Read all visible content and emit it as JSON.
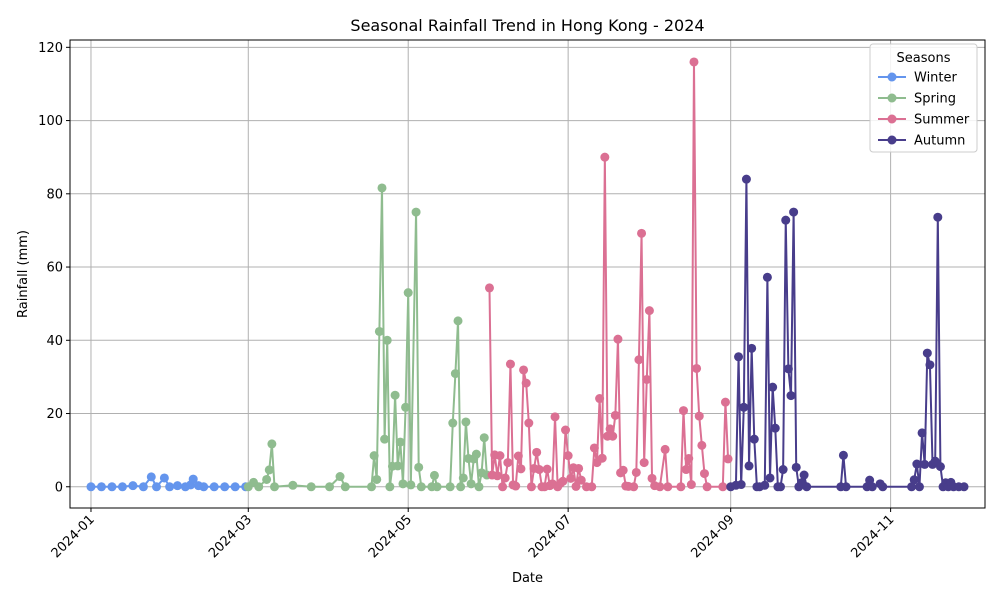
{
  "chart_data": {
    "type": "line",
    "title": "Seasonal Rainfall Trend in Hong Kong - 2024",
    "xlabel": "Date",
    "ylabel": "Rainfall (mm)",
    "xlim": [
      "2023-12-24",
      "2024-12-07"
    ],
    "ylim": [
      -5.8,
      122
    ],
    "x_ticks": [
      "2024-01",
      "2024-03",
      "2024-05",
      "2024-07",
      "2024-09",
      "2024-11"
    ],
    "y_ticks": [
      0,
      20,
      40,
      60,
      80,
      100,
      120
    ],
    "grid": true,
    "legend": {
      "title": "Seasons",
      "position": "top-right"
    },
    "series": [
      {
        "name": "Winter",
        "color": "#6495ED",
        "points": [
          [
            "2024-01-01",
            0
          ],
          [
            "2024-01-05",
            0
          ],
          [
            "2024-01-09",
            0
          ],
          [
            "2024-01-13",
            0
          ],
          [
            "2024-01-17",
            0.3
          ],
          [
            "2024-01-21",
            0
          ],
          [
            "2024-01-24",
            2.7
          ],
          [
            "2024-01-26",
            0
          ],
          [
            "2024-01-29",
            2.4
          ],
          [
            "2024-01-31",
            0
          ],
          [
            "2024-02-03",
            0.3
          ],
          [
            "2024-02-06",
            0
          ],
          [
            "2024-02-08",
            0.5
          ],
          [
            "2024-02-09",
            2.1
          ],
          [
            "2024-02-11",
            0.3
          ],
          [
            "2024-02-13",
            0
          ],
          [
            "2024-02-17",
            0
          ],
          [
            "2024-02-21",
            0
          ],
          [
            "2024-02-25",
            0
          ],
          [
            "2024-02-29",
            0
          ]
        ]
      },
      {
        "name": "Spring",
        "color": "#8FBC8F",
        "points": [
          [
            "2024-03-01",
            0
          ],
          [
            "2024-03-03",
            1.2
          ],
          [
            "2024-03-05",
            0
          ],
          [
            "2024-03-08",
            2
          ],
          [
            "2024-03-09",
            4.6
          ],
          [
            "2024-03-10",
            11.7
          ],
          [
            "2024-03-11",
            0
          ],
          [
            "2024-03-18",
            0.4
          ],
          [
            "2024-03-25",
            0
          ],
          [
            "2024-04-01",
            0
          ],
          [
            "2024-04-05",
            2.8
          ],
          [
            "2024-04-07",
            0
          ],
          [
            "2024-04-17",
            0
          ],
          [
            "2024-04-18",
            8.5
          ],
          [
            "2024-04-19",
            2
          ],
          [
            "2024-04-20",
            42.4
          ],
          [
            "2024-04-21",
            81.6
          ],
          [
            "2024-04-22",
            13
          ],
          [
            "2024-04-23",
            40
          ],
          [
            "2024-04-24",
            0
          ],
          [
            "2024-04-25",
            5.6
          ],
          [
            "2024-04-26",
            25
          ],
          [
            "2024-04-27",
            5.7
          ],
          [
            "2024-04-28",
            12.2
          ],
          [
            "2024-04-29",
            0.8
          ],
          [
            "2024-04-30",
            21.7
          ],
          [
            "2024-05-01",
            53
          ],
          [
            "2024-05-02",
            0.5
          ],
          [
            "2024-05-04",
            75
          ],
          [
            "2024-05-05",
            5.3
          ],
          [
            "2024-05-06",
            0
          ],
          [
            "2024-05-10",
            0
          ],
          [
            "2024-05-11",
            3.1
          ],
          [
            "2024-05-12",
            0
          ],
          [
            "2024-05-17",
            0
          ],
          [
            "2024-05-18",
            17.4
          ],
          [
            "2024-05-19",
            30.9
          ],
          [
            "2024-05-20",
            45.3
          ],
          [
            "2024-05-21",
            0
          ],
          [
            "2024-05-22",
            2.4
          ],
          [
            "2024-05-23",
            17.7
          ],
          [
            "2024-05-24",
            7.7
          ],
          [
            "2024-05-25",
            0.8
          ],
          [
            "2024-05-26",
            7.6
          ],
          [
            "2024-05-27",
            8.9
          ],
          [
            "2024-05-28",
            0
          ],
          [
            "2024-05-29",
            3.8
          ],
          [
            "2024-05-30",
            13.4
          ],
          [
            "2024-05-31",
            3.2
          ]
        ]
      },
      {
        "name": "Summer",
        "color": "#DB7093",
        "points": [
          [
            "2024-06-01",
            54.3
          ],
          [
            "2024-06-02",
            3.2
          ],
          [
            "2024-06-03",
            8.7
          ],
          [
            "2024-06-04",
            3
          ],
          [
            "2024-06-05",
            8.5
          ],
          [
            "2024-06-06",
            0
          ],
          [
            "2024-06-07",
            2.4
          ],
          [
            "2024-06-08",
            6.6
          ],
          [
            "2024-06-09",
            33.5
          ],
          [
            "2024-06-10",
            0.5
          ],
          [
            "2024-06-11",
            0.2
          ],
          [
            "2024-06-12",
            8.4
          ],
          [
            "2024-06-13",
            4.9
          ],
          [
            "2024-06-14",
            31.9
          ],
          [
            "2024-06-15",
            28.3
          ],
          [
            "2024-06-16",
            17.4
          ],
          [
            "2024-06-17",
            0
          ],
          [
            "2024-06-18",
            5
          ],
          [
            "2024-06-19",
            9.4
          ],
          [
            "2024-06-20",
            4.7
          ],
          [
            "2024-06-21",
            0
          ],
          [
            "2024-06-22",
            0
          ],
          [
            "2024-06-23",
            4.8
          ],
          [
            "2024-06-24",
            0.3
          ],
          [
            "2024-06-25",
            0.8
          ],
          [
            "2024-06-26",
            19.1
          ],
          [
            "2024-06-27",
            0
          ],
          [
            "2024-06-28",
            0.9
          ],
          [
            "2024-06-29",
            1.5
          ],
          [
            "2024-06-30",
            15.5
          ],
          [
            "2024-07-01",
            8.5
          ],
          [
            "2024-07-02",
            2.3
          ],
          [
            "2024-07-03",
            5.2
          ],
          [
            "2024-07-04",
            0.1
          ],
          [
            "2024-07-05",
            5
          ],
          [
            "2024-07-06",
            1.8
          ],
          [
            "2024-07-08",
            0
          ],
          [
            "2024-07-10",
            0
          ],
          [
            "2024-07-11",
            10.6
          ],
          [
            "2024-07-12",
            6.6
          ],
          [
            "2024-07-13",
            24.1
          ],
          [
            "2024-07-14",
            7.8
          ],
          [
            "2024-07-15",
            90
          ],
          [
            "2024-07-16",
            13.8
          ],
          [
            "2024-07-17",
            15.8
          ],
          [
            "2024-07-18",
            13.8
          ],
          [
            "2024-07-19",
            19.5
          ],
          [
            "2024-07-20",
            40.3
          ],
          [
            "2024-07-21",
            3.8
          ],
          [
            "2024-07-22",
            4.5
          ],
          [
            "2024-07-23",
            0.2
          ],
          [
            "2024-07-24",
            0.1
          ],
          [
            "2024-07-26",
            0
          ],
          [
            "2024-07-27",
            3.9
          ],
          [
            "2024-07-28",
            34.7
          ],
          [
            "2024-07-29",
            69.2
          ],
          [
            "2024-07-30",
            6.6
          ],
          [
            "2024-07-31",
            29.3
          ],
          [
            "2024-08-01",
            48.1
          ],
          [
            "2024-08-02",
            2.3
          ],
          [
            "2024-08-03",
            0.3
          ],
          [
            "2024-08-05",
            0
          ],
          [
            "2024-08-07",
            10.2
          ],
          [
            "2024-08-08",
            0
          ],
          [
            "2024-08-13",
            0
          ],
          [
            "2024-08-14",
            20.8
          ],
          [
            "2024-08-15",
            4.7
          ],
          [
            "2024-08-16",
            7.7
          ],
          [
            "2024-08-17",
            0.6
          ],
          [
            "2024-08-18",
            116
          ],
          [
            "2024-08-19",
            32.3
          ],
          [
            "2024-08-20",
            19.3
          ],
          [
            "2024-08-21",
            11.3
          ],
          [
            "2024-08-22",
            3.6
          ],
          [
            "2024-08-23",
            0
          ],
          [
            "2024-08-29",
            0
          ],
          [
            "2024-08-30",
            23.1
          ],
          [
            "2024-08-31",
            7.6
          ]
        ]
      },
      {
        "name": "Autumn",
        "color": "#483D8B",
        "points": [
          [
            "2024-09-01",
            0
          ],
          [
            "2024-09-03",
            0.4
          ],
          [
            "2024-09-04",
            35.5
          ],
          [
            "2024-09-05",
            0.6
          ],
          [
            "2024-09-06",
            21.7
          ],
          [
            "2024-09-07",
            84
          ],
          [
            "2024-09-08",
            5.7
          ],
          [
            "2024-09-09",
            37.8
          ],
          [
            "2024-09-10",
            13
          ],
          [
            "2024-09-11",
            0
          ],
          [
            "2024-09-12",
            0
          ],
          [
            "2024-09-14",
            0.4
          ],
          [
            "2024-09-15",
            57.2
          ],
          [
            "2024-09-16",
            2.4
          ],
          [
            "2024-09-17",
            27.2
          ],
          [
            "2024-09-18",
            16
          ],
          [
            "2024-09-19",
            0
          ],
          [
            "2024-09-20",
            0
          ],
          [
            "2024-09-21",
            4.7
          ],
          [
            "2024-09-22",
            72.8
          ],
          [
            "2024-09-23",
            32.2
          ],
          [
            "2024-09-24",
            24.9
          ],
          [
            "2024-09-25",
            75
          ],
          [
            "2024-09-26",
            5.3
          ],
          [
            "2024-09-27",
            0
          ],
          [
            "2024-09-28",
            1.1
          ],
          [
            "2024-09-29",
            3.2
          ],
          [
            "2024-09-30",
            0
          ],
          [
            "2024-10-13",
            0
          ],
          [
            "2024-10-14",
            8.6
          ],
          [
            "2024-10-15",
            0
          ],
          [
            "2024-10-23",
            0
          ],
          [
            "2024-10-24",
            1.8
          ],
          [
            "2024-10-25",
            0
          ],
          [
            "2024-10-28",
            0.8
          ],
          [
            "2024-10-29",
            0
          ],
          [
            "2024-11-09",
            0
          ],
          [
            "2024-11-10",
            1.9
          ],
          [
            "2024-11-11",
            6.2
          ],
          [
            "2024-11-12",
            0
          ],
          [
            "2024-11-13",
            14.7
          ],
          [
            "2024-11-14",
            6.1
          ],
          [
            "2024-11-15",
            36.5
          ],
          [
            "2024-11-16",
            33.3
          ],
          [
            "2024-11-17",
            6.1
          ],
          [
            "2024-11-18",
            7
          ],
          [
            "2024-11-19",
            73.6
          ],
          [
            "2024-11-20",
            5.5
          ],
          [
            "2024-11-21",
            0
          ],
          [
            "2024-11-22",
            1.1
          ],
          [
            "2024-11-23",
            0
          ],
          [
            "2024-11-24",
            1.2
          ],
          [
            "2024-11-25",
            0
          ],
          [
            "2024-11-27",
            0
          ],
          [
            "2024-11-29",
            0
          ]
        ]
      }
    ]
  }
}
